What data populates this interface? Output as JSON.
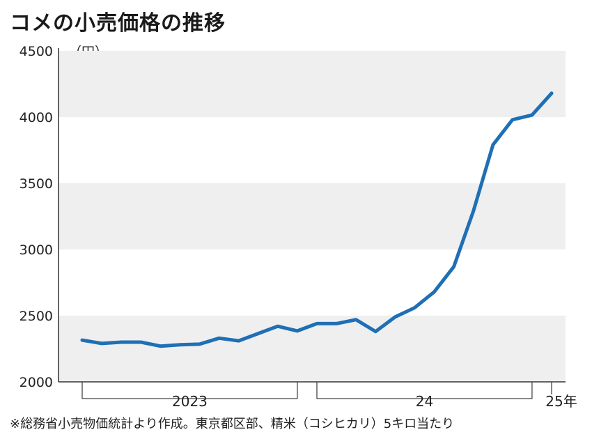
{
  "title": "コメの小売価格の推移",
  "unit_label": "（円）",
  "note": "※総務省小売物価統計より作成。東京都区部、精米（コシヒカリ）5キロ当たり",
  "chart_data": {
    "type": "line",
    "title": "コメの小売価格の推移",
    "ylabel": "（円）",
    "ylim": [
      2000,
      4500
    ],
    "yticks": [
      2000,
      2500,
      3000,
      3500,
      4000,
      4500
    ],
    "banded_background": true,
    "line_color": "#1f6fb5",
    "period_labels": [
      {
        "label": "2023",
        "from_index": 0,
        "to_index": 11
      },
      {
        "label": "24",
        "from_index": 12,
        "to_index": 23
      },
      {
        "label": "25年",
        "from_index": 24,
        "to_index": 24
      }
    ],
    "series": [
      {
        "values": [
          2315,
          2290,
          2300,
          2300,
          2270,
          2280,
          2285,
          2330,
          2310,
          2365,
          2420,
          2385,
          2440,
          2440,
          2470,
          2380,
          2490,
          2560,
          2680,
          2870,
          3290,
          3790,
          3980,
          4015,
          4180
        ]
      }
    ]
  }
}
